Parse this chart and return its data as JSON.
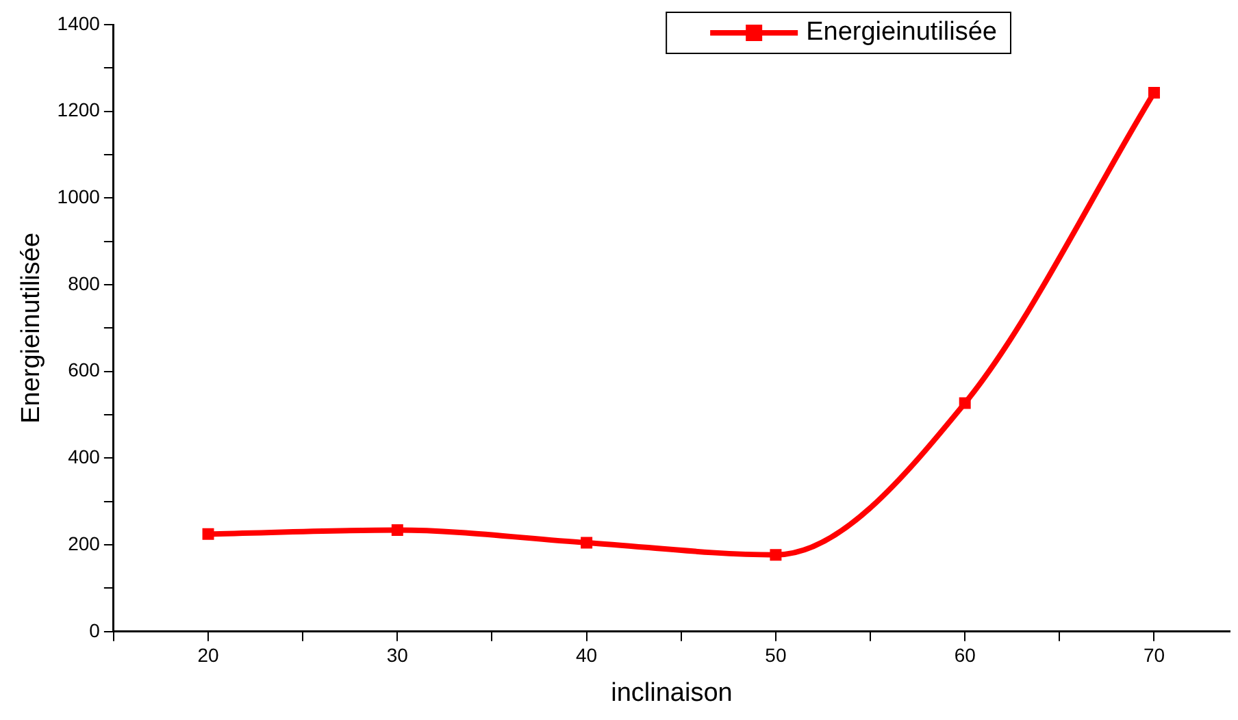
{
  "chart_data": {
    "type": "line",
    "xlabel": "inclinaison",
    "ylabel": "Energieinutilisée",
    "x": [
      20,
      30,
      40,
      50,
      60,
      70
    ],
    "series": [
      {
        "name": "Energieinutilisée",
        "color": "#ff0000",
        "values": [
          225,
          234,
          205,
          177,
          527,
          1243
        ]
      }
    ],
    "xlim": [
      15,
      74
    ],
    "xticks": [
      {
        "value": 15,
        "label": null
      },
      20,
      {
        "value": 25,
        "label": null
      },
      30,
      {
        "value": 35,
        "label": null
      },
      40,
      {
        "value": 45,
        "label": null
      },
      50,
      {
        "value": 55,
        "label": null
      },
      60,
      {
        "value": 65,
        "label": null
      },
      70
    ],
    "ylim": [
      0,
      1400
    ],
    "yticks": [
      0,
      {
        "value": 100,
        "label": null
      },
      200,
      {
        "value": 300,
        "label": null
      },
      400,
      {
        "value": 500,
        "label": null
      },
      600,
      {
        "value": 700,
        "label": null
      },
      800,
      {
        "value": 900,
        "label": null
      },
      1000,
      {
        "value": 1100,
        "label": null
      },
      1200,
      {
        "value": 1300,
        "label": null
      },
      1400
    ],
    "grid": false,
    "legend": "top right",
    "marker": "square",
    "line_style": "solid"
  }
}
